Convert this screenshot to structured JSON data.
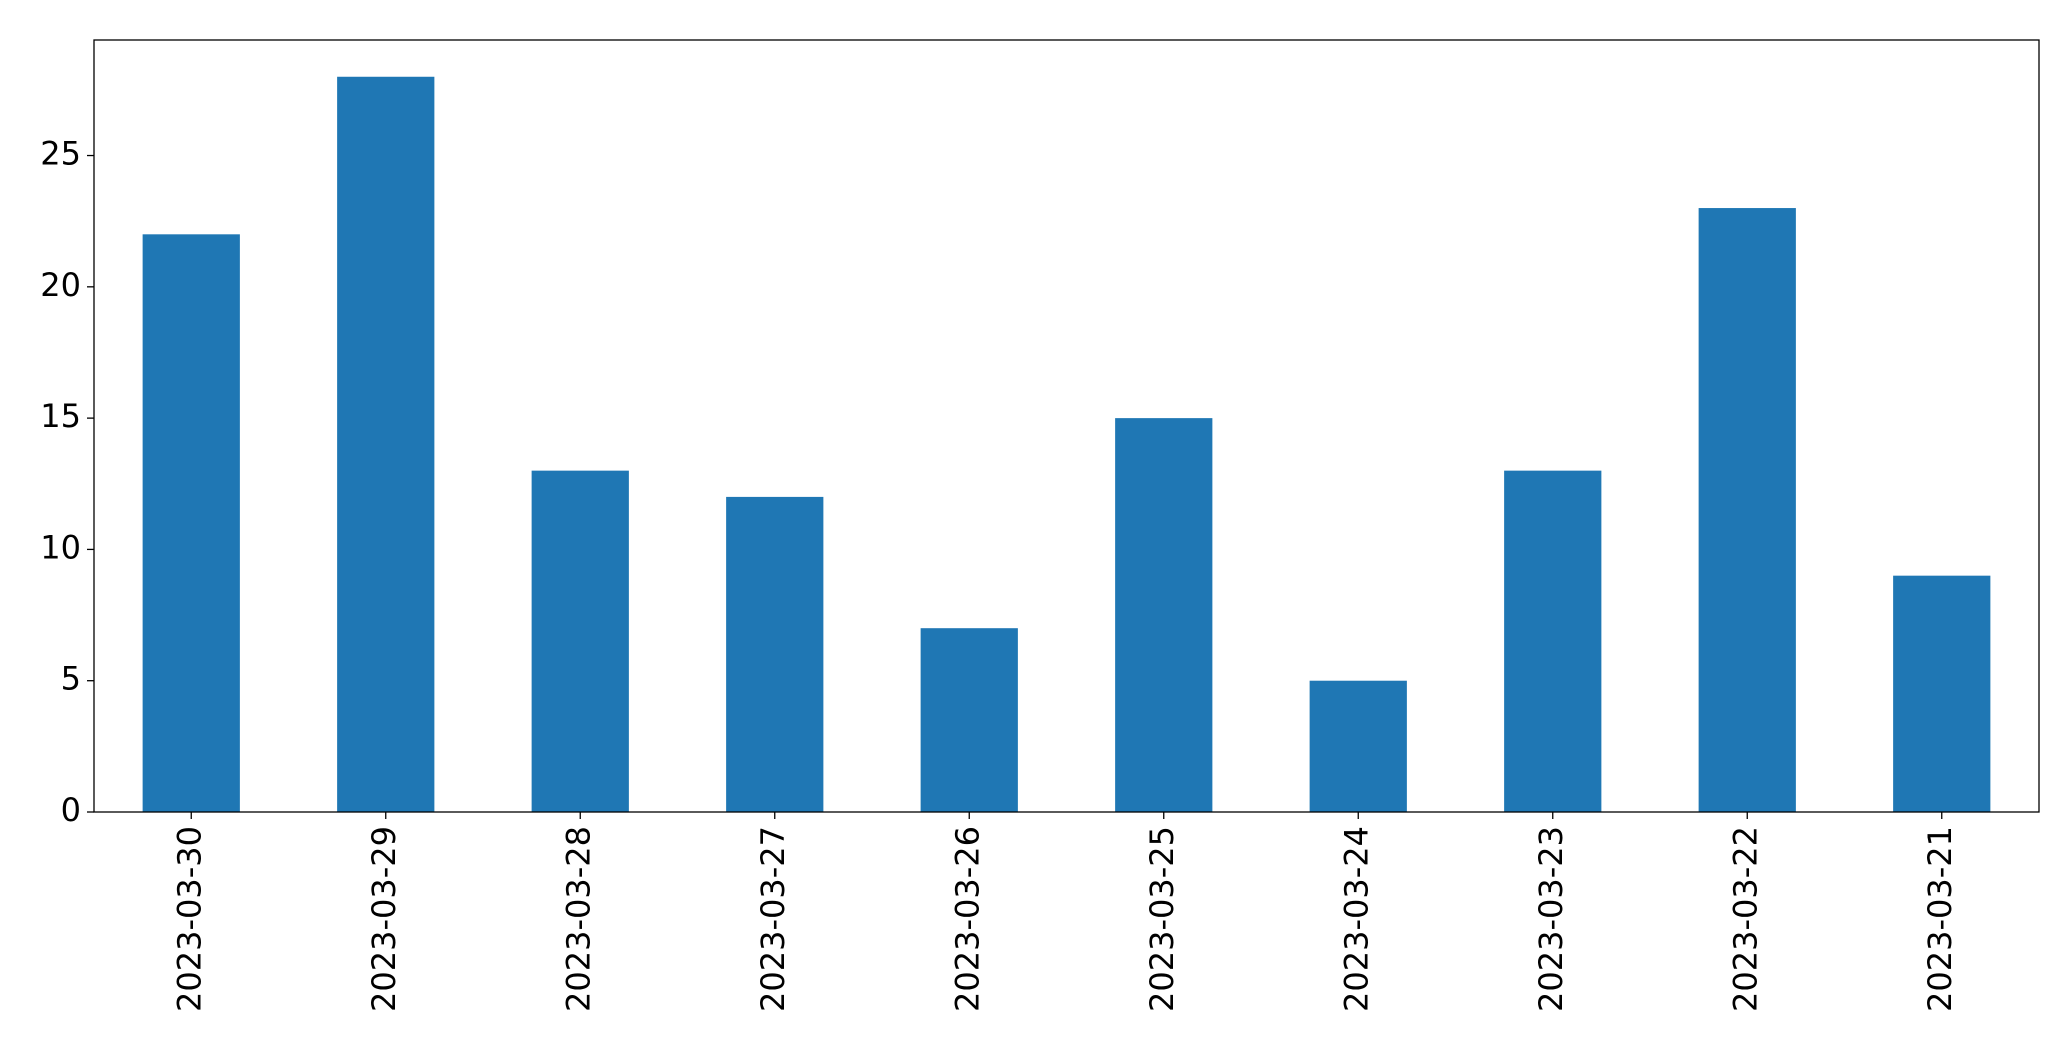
{
  "chart_data": {
    "type": "bar",
    "categories": [
      "2023-03-30",
      "2023-03-29",
      "2023-03-28",
      "2023-03-27",
      "2023-03-26",
      "2023-03-25",
      "2023-03-24",
      "2023-03-23",
      "2023-03-22",
      "2023-03-21"
    ],
    "values": [
      22,
      28,
      13,
      12,
      7,
      15,
      5,
      13,
      23,
      9
    ],
    "color": "#1f77b4",
    "ylim": [
      0,
      29.4
    ],
    "yticks": [
      0,
      5,
      10,
      15,
      20,
      25
    ],
    "grid": false
  }
}
